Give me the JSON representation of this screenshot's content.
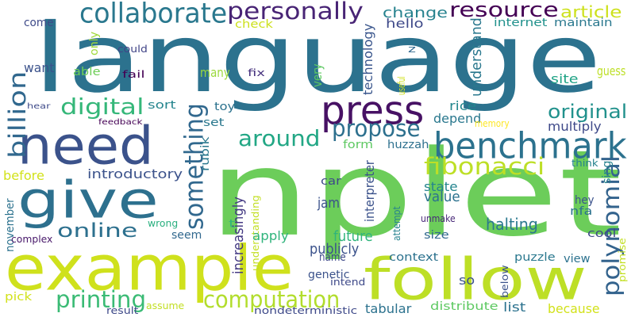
{
  "cloud": {
    "words": [
      {
        "text": "language",
        "color": "#2c728e"
      },
      {
        "text": "nplet",
        "color": "#6ccd5a"
      },
      {
        "text": "example",
        "color": "#cfe11c"
      },
      {
        "text": "follow",
        "color": "#bddf26"
      },
      {
        "text": "give",
        "color": "#2d708e"
      },
      {
        "text": "need",
        "color": "#3b528b"
      },
      {
        "text": "benchmark",
        "color": "#2c728e"
      },
      {
        "text": "press",
        "color": "#471164"
      },
      {
        "text": "personally",
        "color": "#482475"
      },
      {
        "text": "collaborate",
        "color": "#2a788e"
      },
      {
        "text": "resource",
        "color": "#440154"
      },
      {
        "text": "computation",
        "color": "#b2dd2d"
      },
      {
        "text": "printing",
        "color": "#3bbb75"
      },
      {
        "text": "digital",
        "color": "#35b779"
      },
      {
        "text": "fibonacci",
        "color": "#bddf26"
      },
      {
        "text": "around",
        "color": "#22a785"
      },
      {
        "text": "propose",
        "color": "#2d708e"
      },
      {
        "text": "online",
        "color": "#2d708e"
      },
      {
        "text": "something",
        "color": "#31688e"
      },
      {
        "text": "billion",
        "color": "#31688e"
      },
      {
        "text": "polynomial",
        "color": "#33638d"
      },
      {
        "text": "original",
        "color": "#21918c"
      },
      {
        "text": "article",
        "color": "#cde11d"
      },
      {
        "text": "change",
        "color": "#26828e"
      },
      {
        "text": "hello",
        "color": "#3e4989"
      },
      {
        "text": "internet",
        "color": "#21918c"
      },
      {
        "text": "maintain",
        "color": "#2a788e"
      },
      {
        "text": "check",
        "color": "#cde11d"
      },
      {
        "text": "come",
        "color": "#3e4a89"
      },
      {
        "text": "want",
        "color": "#3b528b"
      },
      {
        "text": "able",
        "color": "#6ece58"
      },
      {
        "text": "could",
        "color": "#414487"
      },
      {
        "text": "fail",
        "color": "#440154"
      },
      {
        "text": "many",
        "color": "#9bd93c"
      },
      {
        "text": "fix",
        "color": "#46327e"
      },
      {
        "text": "only",
        "color": "#a0da39"
      },
      {
        "text": "sort",
        "color": "#25858e"
      },
      {
        "text": "toy",
        "color": "#2c728e"
      },
      {
        "text": "set",
        "color": "#2a788e"
      },
      {
        "text": "feedback",
        "color": "#440154"
      },
      {
        "text": "hear",
        "color": "#3e4a89"
      },
      {
        "text": "technology",
        "color": "#39558c"
      },
      {
        "text": "very",
        "color": "#5ec962"
      },
      {
        "text": "useful",
        "color": "#d0e11c"
      },
      {
        "text": "understand",
        "color": "#2a788e"
      },
      {
        "text": "rice",
        "color": "#24878e"
      },
      {
        "text": "depend",
        "color": "#2a788e"
      },
      {
        "text": "memory",
        "color": "#fde725"
      },
      {
        "text": "site",
        "color": "#20a386"
      },
      {
        "text": "guess",
        "color": "#bddf26"
      },
      {
        "text": "multiply",
        "color": "#3e4989"
      },
      {
        "text": "form",
        "color": "#5ec962"
      },
      {
        "text": "huzzah",
        "color": "#2d708e"
      },
      {
        "text": "interpreter",
        "color": "#3b528b"
      },
      {
        "text": "think",
        "color": "#26828e"
      },
      {
        "text": "sing",
        "color": "#26828e"
      },
      {
        "text": "rubik",
        "color": "#2a788e"
      },
      {
        "text": "introductory",
        "color": "#3b528b"
      },
      {
        "text": "before",
        "color": "#d2e21b"
      },
      {
        "text": "car",
        "color": "#3e4989"
      },
      {
        "text": "state",
        "color": "#25858e"
      },
      {
        "text": "value",
        "color": "#2c728e"
      },
      {
        "text": "increasingly",
        "color": "#443a83"
      },
      {
        "text": "understanding",
        "color": "#c2df23"
      },
      {
        "text": "jam",
        "color": "#3b528b"
      },
      {
        "text": "hey",
        "color": "#3b528b"
      },
      {
        "text": "nfa",
        "color": "#2c728e"
      },
      {
        "text": "november",
        "color": "#2c728e"
      },
      {
        "text": "complex",
        "color": "#48186a"
      },
      {
        "text": "wrong",
        "color": "#29af7f"
      },
      {
        "text": "t",
        "color": "#35b779"
      },
      {
        "text": "seem",
        "color": "#31688e"
      },
      {
        "text": "apply",
        "color": "#2fb47c"
      },
      {
        "text": "unmake",
        "color": "#482878"
      },
      {
        "text": "halting",
        "color": "#2a788e"
      },
      {
        "text": "cool",
        "color": "#3e4989"
      },
      {
        "text": "attempt",
        "color": "#26828e"
      },
      {
        "text": "future",
        "color": "#2fb47c"
      },
      {
        "text": "publicly",
        "color": "#3b528b"
      },
      {
        "text": "size",
        "color": "#31688e"
      },
      {
        "text": "name",
        "color": "#3e4989"
      },
      {
        "text": "context",
        "color": "#2c728e"
      },
      {
        "text": "puzzle",
        "color": "#2a788e"
      },
      {
        "text": "view",
        "color": "#2c728e"
      },
      {
        "text": "promise",
        "color": "#c2df23"
      },
      {
        "text": "genetic",
        "color": "#3b528b"
      },
      {
        "text": "intend",
        "color": "#3e4989"
      },
      {
        "text": "so",
        "color": "#3b528b"
      },
      {
        "text": "below",
        "color": "#3b528b"
      },
      {
        "text": "pick",
        "color": "#d2e21b"
      },
      {
        "text": "assume",
        "color": "#c2df23"
      },
      {
        "text": "result",
        "color": "#3e4989"
      },
      {
        "text": "nondeterministic",
        "color": "#3e4989"
      },
      {
        "text": "tabular",
        "color": "#2c728e"
      },
      {
        "text": "distribute",
        "color": "#5ec962"
      },
      {
        "text": "list",
        "color": "#2c728e"
      },
      {
        "text": "because",
        "color": "#d2e21b"
      },
      {
        "text": "z",
        "color": "#31688e"
      }
    ]
  }
}
